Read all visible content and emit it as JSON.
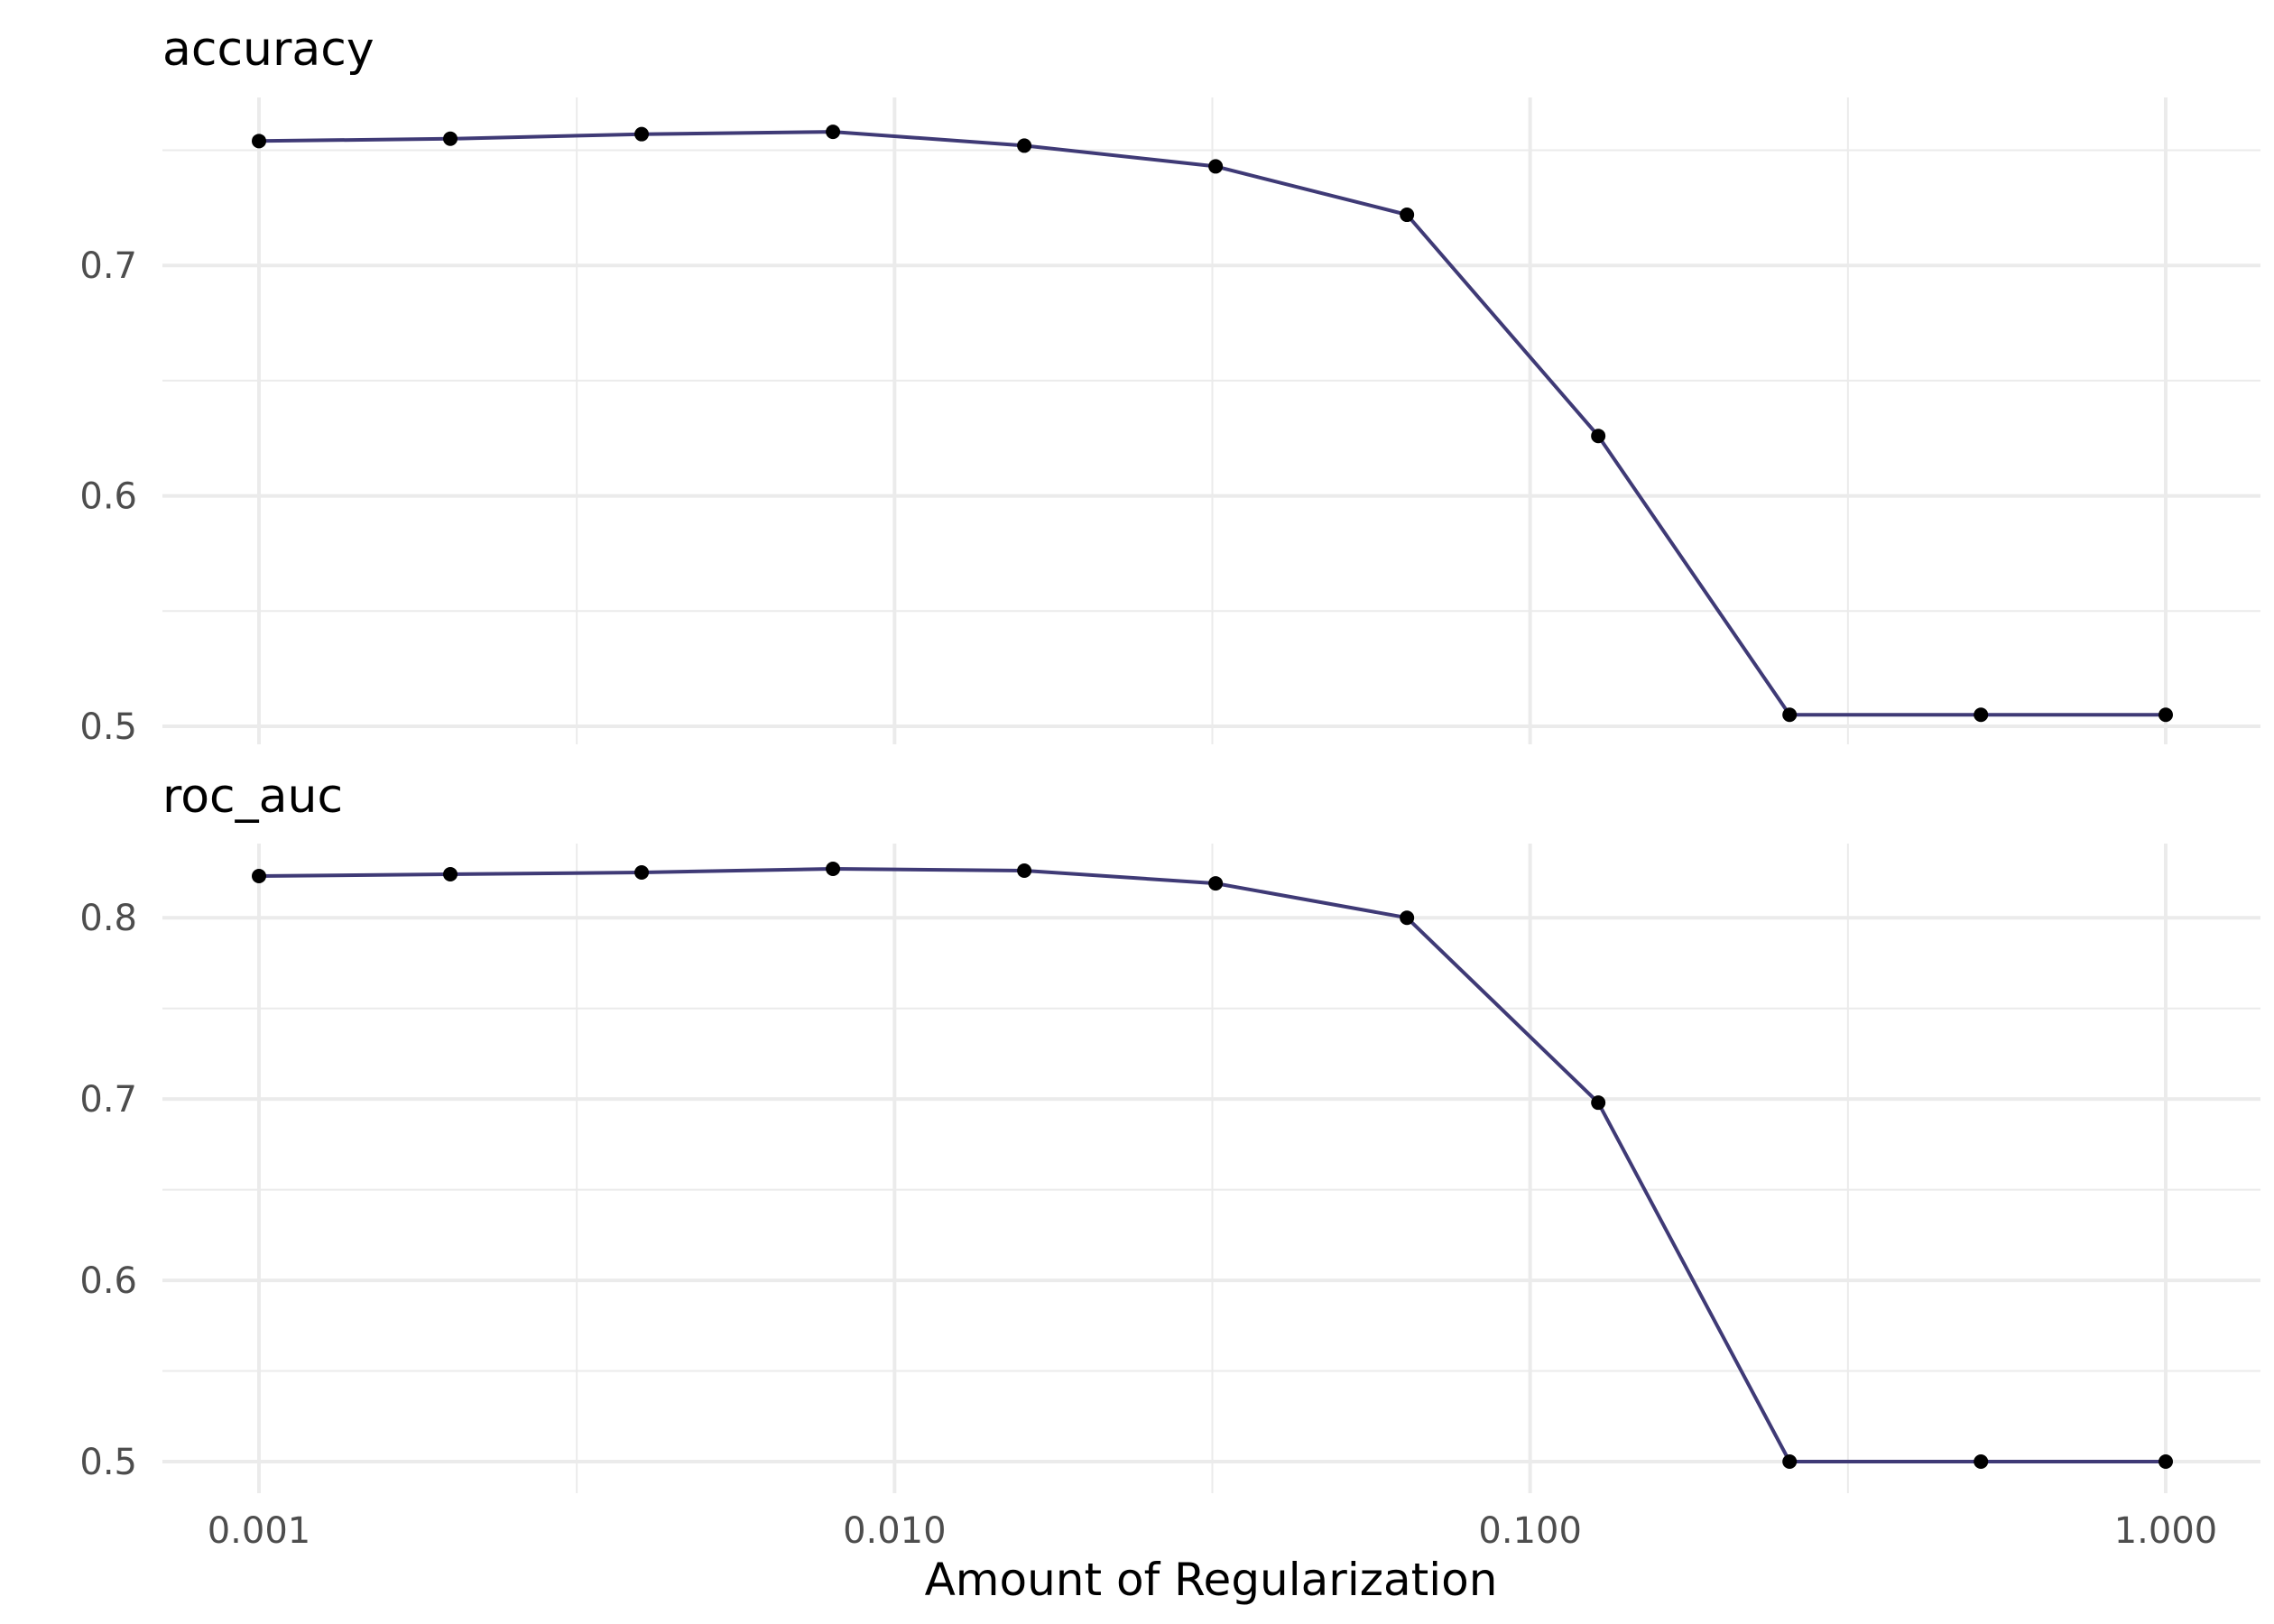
{
  "chart_data": {
    "type": "line",
    "xlabel": "Amount of Regularization",
    "x_scale": "log10",
    "x_ticks": [
      "0.001",
      "0.010",
      "0.100",
      "1.000"
    ],
    "xlim": [
      0.001,
      1.0
    ],
    "grid": true,
    "colors": {
      "line": "#3f3a76",
      "point": "#000000"
    },
    "x": [
      0.001,
      0.002,
      0.004,
      0.008,
      0.016,
      0.032,
      0.064,
      0.128,
      0.256,
      0.512,
      1.0
    ],
    "panels": [
      {
        "title": "accuracy",
        "ylim": [
          0.5,
          0.76
        ],
        "y_ticks": [
          "0.5",
          "0.6",
          "0.7"
        ],
        "values": [
          0.754,
          0.755,
          0.757,
          0.758,
          0.752,
          0.743,
          0.722,
          0.626,
          0.505,
          0.505,
          0.505
        ]
      },
      {
        "title": "roc_auc",
        "ylim": [
          0.5,
          0.826
        ],
        "y_ticks": [
          "0.5",
          "0.6",
          "0.7",
          "0.8"
        ],
        "values": [
          0.823,
          0.824,
          0.825,
          0.827,
          0.826,
          0.819,
          0.8,
          0.698,
          0.5,
          0.5,
          0.5
        ]
      }
    ]
  }
}
